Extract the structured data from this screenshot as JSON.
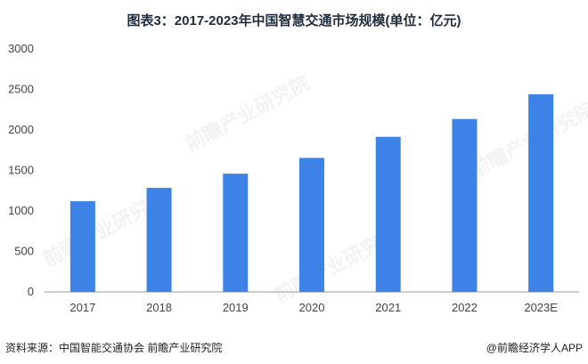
{
  "title": "图表3：2017-2023年中国智慧交通市场规模(单位：亿元)",
  "source": "资料来源：中国智能交通协会 前瞻产业研究院",
  "credit": "@前瞻经济学人APP",
  "watermark": "前瞻产业研究院",
  "colors": {
    "bar": "#3d82e6",
    "axis": "#999999"
  },
  "chart_data": {
    "type": "bar",
    "categories": [
      "2017",
      "2018",
      "2019",
      "2020",
      "2021",
      "2022",
      "2023E"
    ],
    "values": [
      1120,
      1285,
      1460,
      1655,
      1915,
      2135,
      2440
    ],
    "ylim": [
      0,
      3000
    ],
    "yticks": [
      0,
      500,
      1000,
      1500,
      2000,
      2500,
      3000
    ],
    "grid": false
  }
}
